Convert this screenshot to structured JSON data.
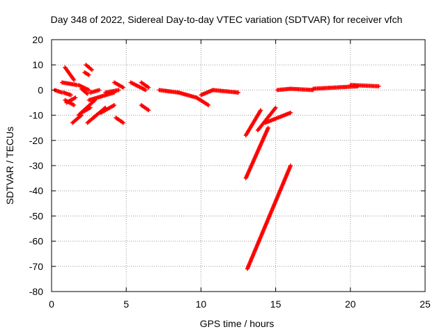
{
  "chart_data": {
    "type": "scatter",
    "title": "Day 348 of 2022, Sidereal Day-to-day VTEC variation (SDTVAR) for receiver vfch",
    "xlabel": "GPS time / hours",
    "ylabel": "SDTVAR / TECUs",
    "xlim": [
      0,
      25
    ],
    "ylim": [
      -80,
      20
    ],
    "xticks": [
      0,
      5,
      10,
      15,
      20,
      25
    ],
    "yticks": [
      -80,
      -70,
      -60,
      -50,
      -40,
      -30,
      -20,
      -10,
      0,
      10,
      20
    ],
    "xtick_labels": [
      "0",
      "5",
      "10",
      "15",
      "20",
      "25"
    ],
    "ytick_labels": [
      "-80",
      "-70",
      "-60",
      "-50",
      "-40",
      "-30",
      "-20",
      "-10",
      "0",
      "10",
      "20"
    ],
    "grid": true,
    "marker": "+",
    "marker_color": "#ff0000",
    "series": [
      {
        "name": "SDTVAR",
        "segments": [
          {
            "x": [
              0.2,
              0.7
            ],
            "y": [
              0,
              -1
            ]
          },
          {
            "x": [
              0.9,
              1.5
            ],
            "y": [
              9,
              4
            ]
          },
          {
            "x": [
              2.3,
              2.7
            ],
            "y": [
              10,
              8
            ]
          },
          {
            "x": [
              2.2,
              2.5
            ],
            "y": [
              7,
              6
            ]
          },
          {
            "x": [
              0.7,
              1.7
            ],
            "y": [
              3,
              2
            ]
          },
          {
            "x": [
              1.8,
              2.5
            ],
            "y": [
              2,
              0
            ]
          },
          {
            "x": [
              2.0,
              2.4
            ],
            "y": [
              0.5,
              -1.5
            ]
          },
          {
            "x": [
              0.8,
              1.3
            ],
            "y": [
              -1,
              -2
            ]
          },
          {
            "x": [
              0.9,
              1.5
            ],
            "y": [
              -4,
              -6
            ]
          },
          {
            "x": [
              1.0,
              1.6
            ],
            "y": [
              -5,
              -3
            ]
          },
          {
            "x": [
              1.4,
              2.0
            ],
            "y": [
              -13,
              -10
            ]
          },
          {
            "x": [
              2.0,
              2.6
            ],
            "y": [
              -9,
              -7
            ]
          },
          {
            "x": [
              1.8,
              2.9
            ],
            "y": [
              -10,
              -4
            ]
          },
          {
            "x": [
              2.4,
              3.2
            ],
            "y": [
              -13,
              -9
            ]
          },
          {
            "x": [
              2.8,
              3.6
            ],
            "y": [
              -11,
              -7
            ]
          },
          {
            "x": [
              3.3,
              4.2
            ],
            "y": [
              -9,
              -6
            ]
          },
          {
            "x": [
              2.5,
              4.2
            ],
            "y": [
              -4,
              -1
            ]
          },
          {
            "x": [
              2.6,
              3.2
            ],
            "y": [
              -1,
              0
            ]
          },
          {
            "x": [
              3.6,
              4.5
            ],
            "y": [
              -1,
              0
            ]
          },
          {
            "x": [
              4.2,
              4.8
            ],
            "y": [
              3,
              1
            ]
          },
          {
            "x": [
              4.3,
              4.8
            ],
            "y": [
              -11,
              -13
            ]
          },
          {
            "x": [
              5.3,
              6.3
            ],
            "y": [
              3,
              0
            ]
          },
          {
            "x": [
              6.0,
              6.5
            ],
            "y": [
              3,
              1
            ]
          },
          {
            "x": [
              6.0,
              6.5
            ],
            "y": [
              -6,
              -8
            ]
          },
          {
            "x": [
              7.2,
              8.5
            ],
            "y": [
              0,
              -1
            ]
          },
          {
            "x": [
              8.5,
              9.7
            ],
            "y": [
              -1,
              -3
            ]
          },
          {
            "x": [
              9.7,
              10.5
            ],
            "y": [
              -3,
              -6
            ]
          },
          {
            "x": [
              10.0,
              10.8
            ],
            "y": [
              -2,
              0
            ]
          },
          {
            "x": [
              10.8,
              12.5
            ],
            "y": [
              0,
              -1
            ]
          },
          {
            "x": [
              13.0,
              14.0
            ],
            "y": [
              -18,
              -8
            ]
          },
          {
            "x": [
              13.0,
              14.5
            ],
            "y": [
              -35,
              -15
            ]
          },
          {
            "x": [
              13.1,
              16.0
            ],
            "y": [
              -71,
              -30
            ]
          },
          {
            "x": [
              13.8,
              15.0
            ],
            "y": [
              -16,
              -7
            ]
          },
          {
            "x": [
              14.3,
              16.0
            ],
            "y": [
              -13,
              -9
            ]
          },
          {
            "x": [
              15.1,
              16.0
            ],
            "y": [
              0,
              0.5
            ]
          },
          {
            "x": [
              16.0,
              17.5
            ],
            "y": [
              0.5,
              0
            ]
          },
          {
            "x": [
              17.5,
              20.5
            ],
            "y": [
              0.5,
              1.5
            ]
          },
          {
            "x": [
              20.0,
              21.9
            ],
            "y": [
              2,
              1.5
            ]
          }
        ]
      }
    ]
  }
}
